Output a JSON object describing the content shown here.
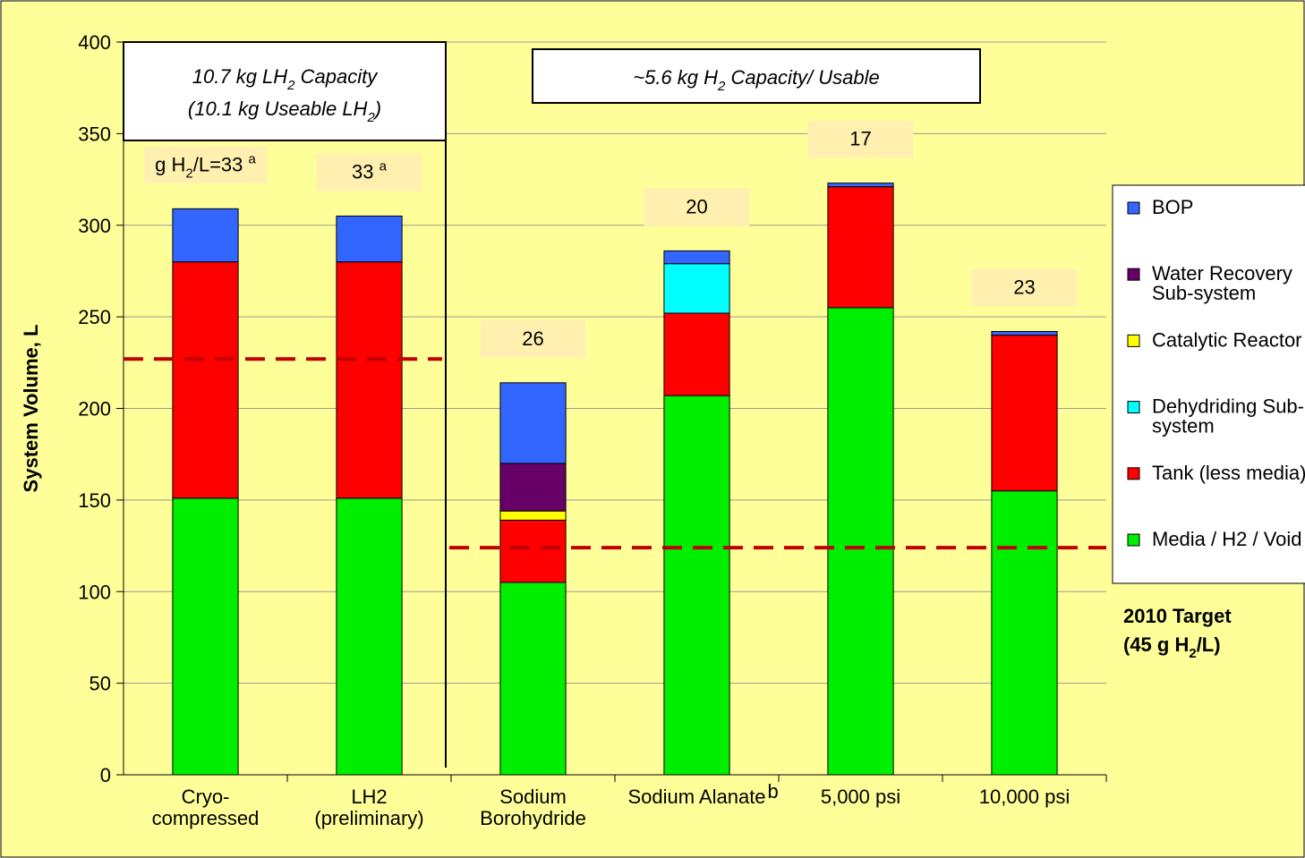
{
  "chart_data": {
    "type": "stacked_bar",
    "y_label": "System Volume, L",
    "categories": [
      "Cryo-\ncompressed",
      "LH2\n(preliminary)",
      "Sodium\nBorohydride",
      "Sodium Alanate",
      "5,000 psi",
      "10,000 psi"
    ],
    "category_marks": [
      null,
      null,
      null,
      "b",
      null,
      null
    ],
    "series": [
      {
        "name": "Media / H2 / Void",
        "color": "#00ee00",
        "values": [
          151,
          151,
          105,
          207,
          255,
          155
        ]
      },
      {
        "name": "Tank (less media)",
        "color": "#ff0000",
        "values": [
          129,
          129,
          34,
          45,
          66,
          85
        ]
      },
      {
        "name": "Dehydriding Sub-\nsystem",
        "color": "#00ffff",
        "values": [
          0,
          0,
          0,
          27,
          0,
          0
        ]
      },
      {
        "name": "Catalytic Reactor",
        "color": "#ffff00",
        "values": [
          0,
          0,
          5,
          0,
          0,
          0
        ]
      },
      {
        "name": "Water Recovery\nSub-system",
        "color": "#660066",
        "values": [
          0,
          0,
          26,
          0,
          0,
          0
        ]
      },
      {
        "name": "BOP",
        "color": "#3366ff",
        "values": [
          29,
          25,
          44,
          7,
          2,
          2
        ]
      }
    ],
    "ylim": [
      0,
      400
    ],
    "yticks": [
      0,
      50,
      100,
      150,
      200,
      250,
      300,
      350,
      400
    ],
    "grid": true,
    "density_labels": [
      [
        {
          "text": "g H"
        },
        {
          "text": "2",
          "style": "sub"
        },
        {
          "text": "/L=33 "
        },
        {
          "text": "a",
          "style": "sup"
        }
      ],
      [
        {
          "text": "33 "
        },
        {
          "text": "a",
          "style": "sup"
        }
      ],
      [
        {
          "text": "26"
        }
      ],
      [
        {
          "text": "20"
        }
      ],
      [
        {
          "text": "17"
        }
      ],
      [
        {
          "text": "23"
        }
      ]
    ],
    "boxes": [
      [
        [
          {
            "text": "10.7 kg LH"
          },
          {
            "text": "2",
            "style": "sub"
          },
          {
            "text": " Capacity"
          }
        ],
        [
          {
            "text": "(10.1 kg Useable LH"
          },
          {
            "text": "2",
            "style": "sub"
          },
          {
            "text": ")"
          }
        ]
      ],
      [
        [
          {
            "text": "~5.6 kg H"
          },
          {
            "text": "2",
            "style": "sub"
          },
          {
            "text": " Capacity/ Usable"
          }
        ]
      ]
    ],
    "reference_lines": [
      {
        "value": 227,
        "color": "#c00000"
      },
      {
        "value": 124,
        "color": "#c00000"
      }
    ],
    "target_label": [
      [
        {
          "text": "2010 Target"
        }
      ],
      [
        {
          "text": "(45 g H"
        },
        {
          "text": "2",
          "style": "sub"
        },
        {
          "text": "/L)"
        }
      ]
    ]
  }
}
